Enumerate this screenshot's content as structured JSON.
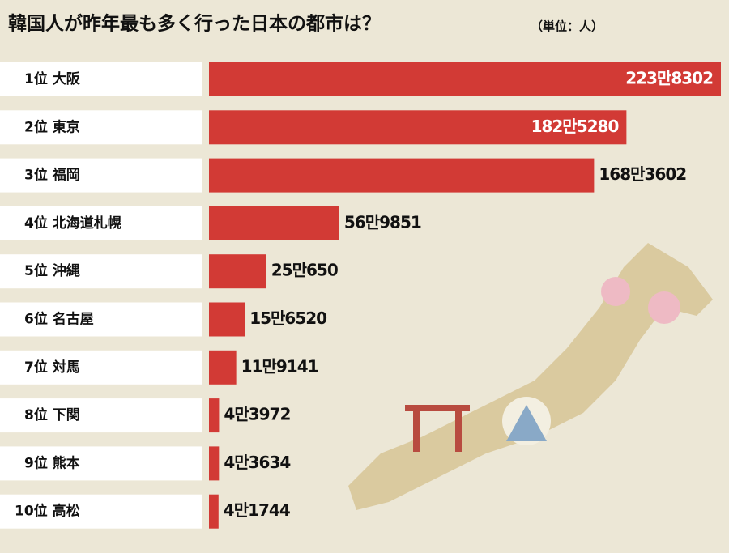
{
  "chart_data": {
    "type": "bar",
    "orientation": "horizontal",
    "title": "韓国人が昨年最も多く行った日本の都市は？",
    "subtitle": "（単位：人）",
    "categories": [
      "1位 大阪",
      "2位 東京",
      "3位 福岡",
      "4位 北海道札幌",
      "5位 沖縄",
      "6位 名古屋",
      "7位 対馬",
      "8位 下関",
      "9位 熊本",
      "10位 高松"
    ],
    "values": [
      2238302,
      1825280,
      1683602,
      569851,
      250650,
      156520,
      119141,
      43972,
      43634,
      41744
    ],
    "value_labels": [
      "223만8302",
      "182만5280",
      "168만3602",
      "56만9851",
      "25만650",
      "15만6520",
      "11만9141",
      "4만3972",
      "4만3634",
      "4만1744"
    ],
    "color": "#d23a35"
  }
}
